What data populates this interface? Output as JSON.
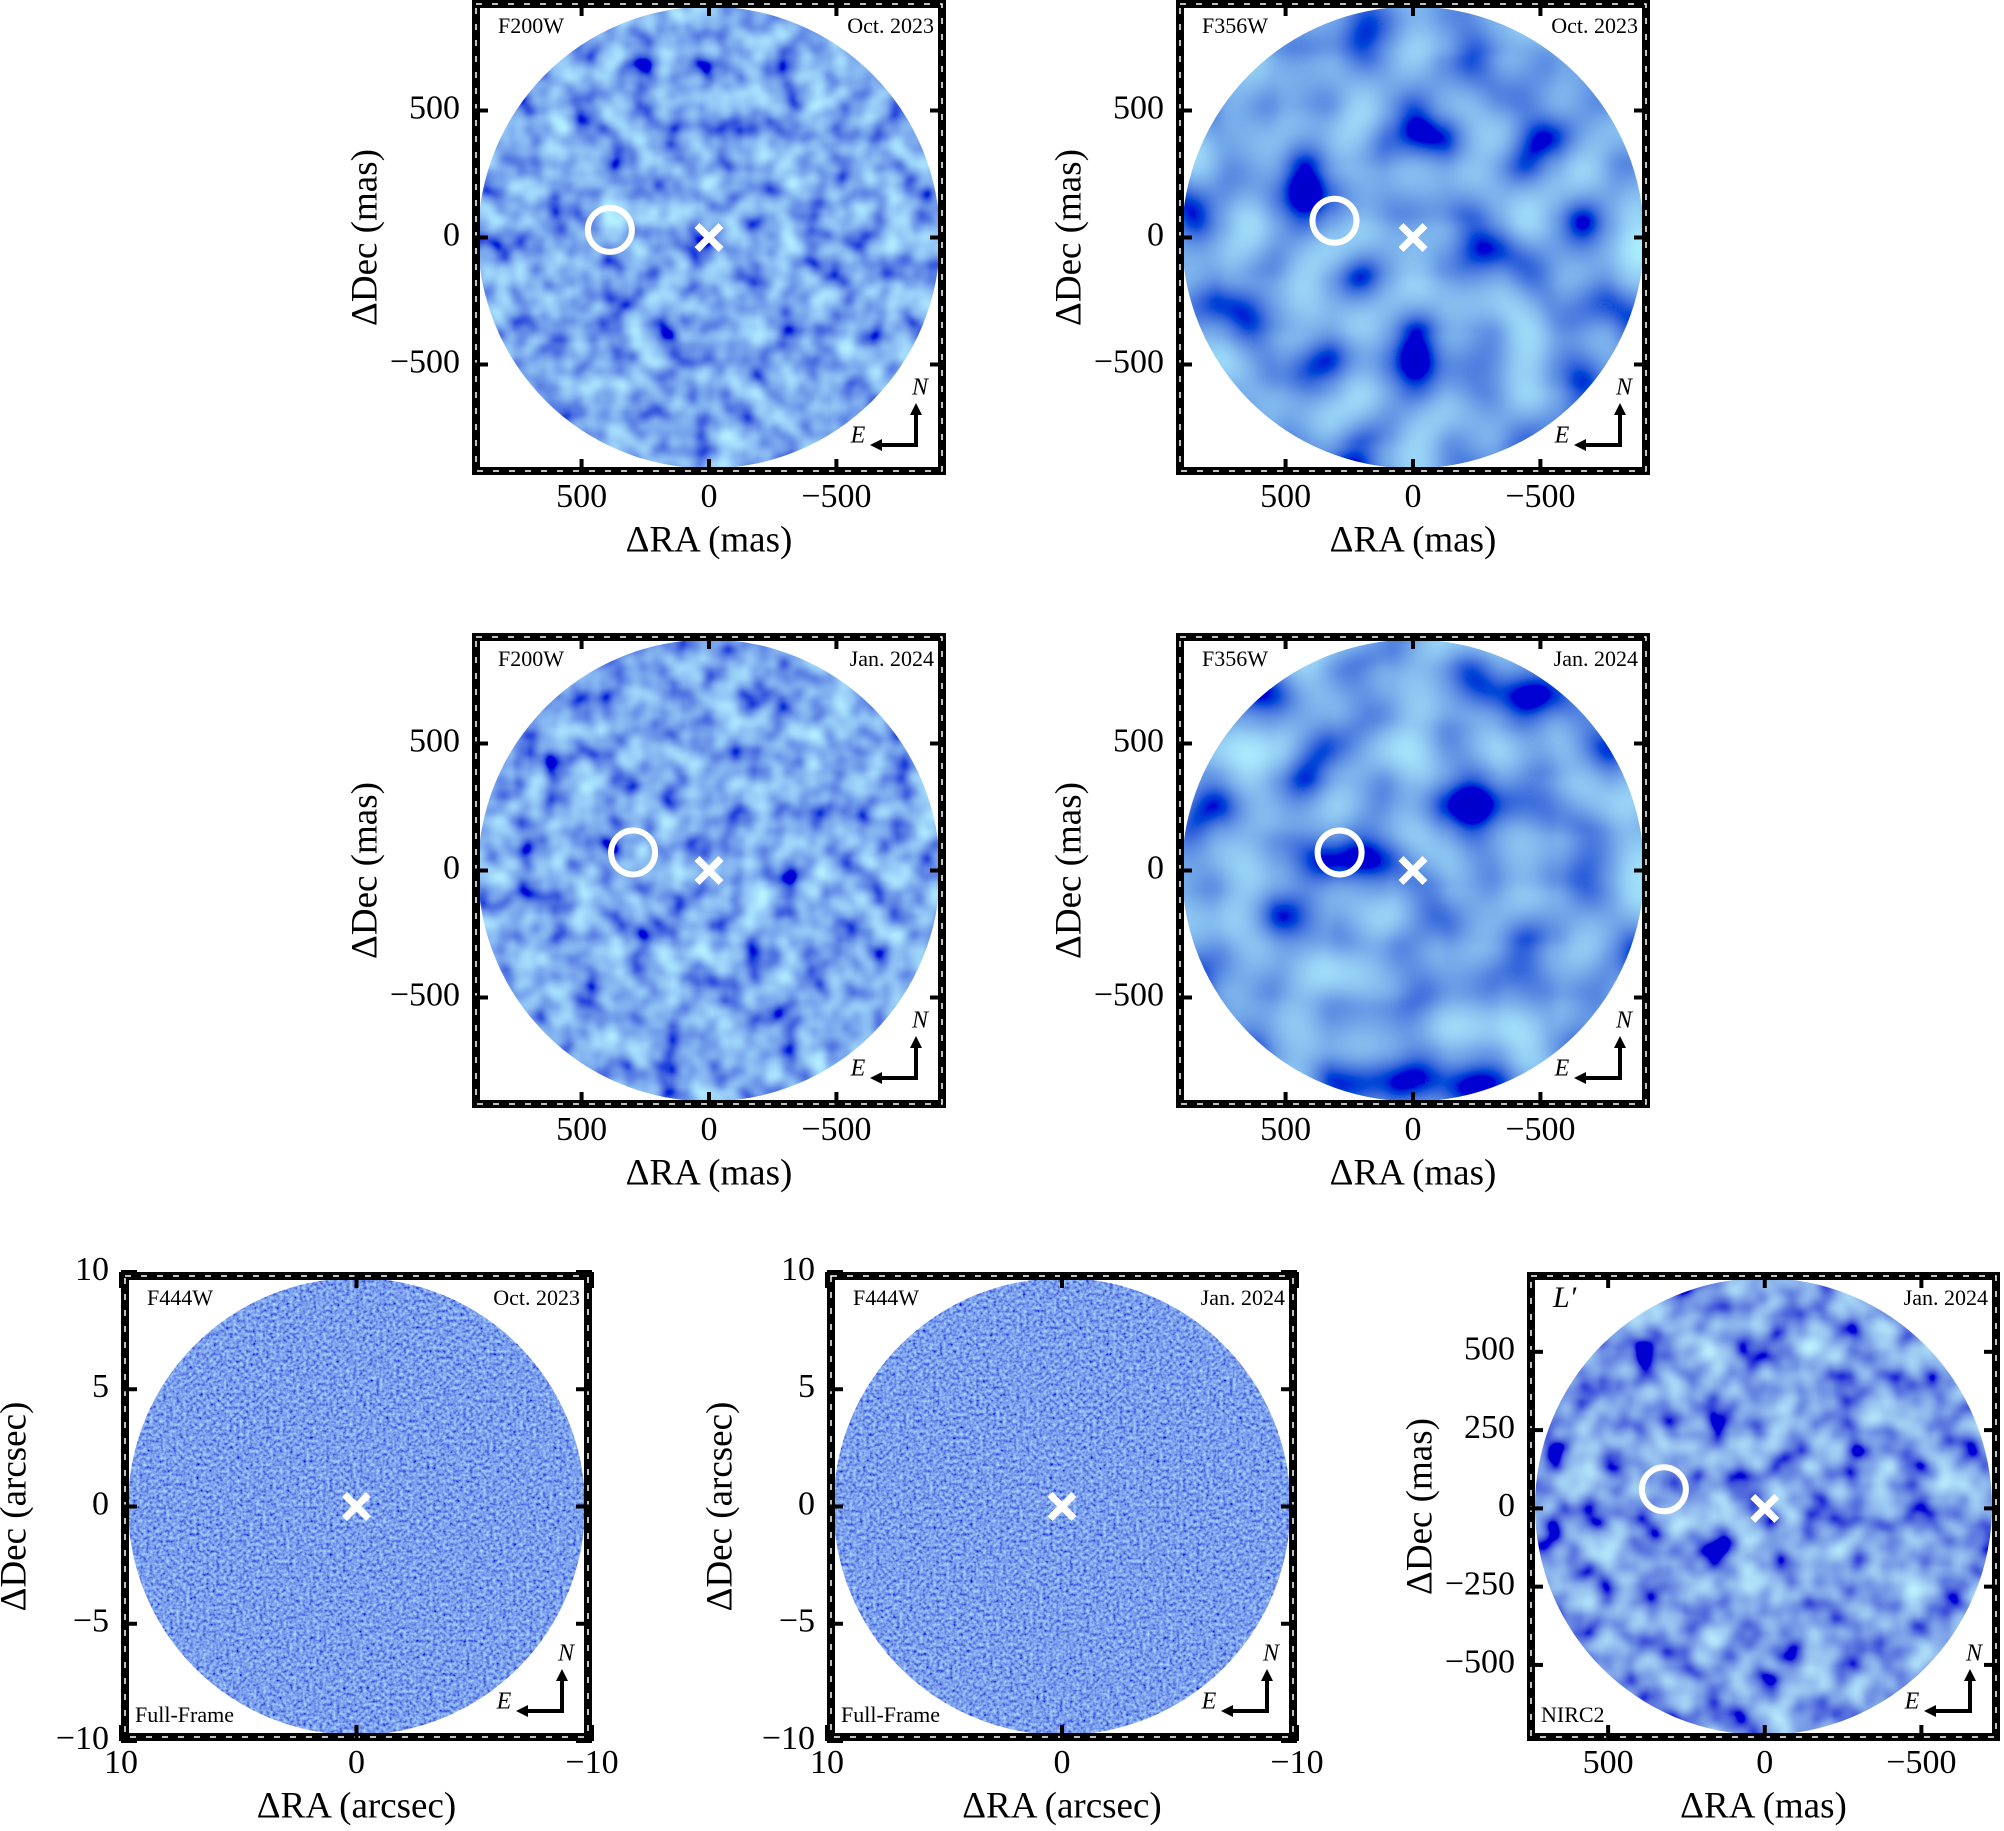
{
  "chart_data": [
    {
      "type": "image",
      "filter": "F200W",
      "date": "Oct. 2023",
      "xlabel": "ΔRA (mas)",
      "ylabel": "ΔDec (mas)",
      "compass": [
        "N",
        "E"
      ],
      "xlim": [
        930,
        -930
      ],
      "ylim": [
        -935,
        935
      ],
      "xticks": [
        500,
        0,
        {
          "value": -500,
          "label": "−500"
        }
      ],
      "yticks": [
        500,
        0,
        {
          "value": -500,
          "label": "−500"
        }
      ],
      "points": [
        {
          "x": 0,
          "y": 0,
          "marker": "x"
        },
        {
          "x": 389,
          "y": 30,
          "marker": "o"
        }
      ]
    },
    {
      "type": "image",
      "filter": "F356W",
      "date": "Oct. 2023",
      "xlabel": "ΔRA (mas)",
      "ylabel": "ΔDec (mas)",
      "compass": [
        "N",
        "E"
      ],
      "xlim": [
        930,
        -930
      ],
      "ylim": [
        -935,
        935
      ],
      "xticks": [
        500,
        0,
        {
          "value": -500,
          "label": "−500"
        }
      ],
      "yticks": [
        500,
        0,
        {
          "value": -500,
          "label": "−500"
        }
      ],
      "points": [
        {
          "x": 0,
          "y": 0,
          "marker": "x"
        },
        {
          "x": 308,
          "y": 66,
          "marker": "o"
        }
      ]
    },
    {
      "type": "image",
      "filter": "F200W",
      "date": "Jan. 2024",
      "xlabel": "ΔRA (mas)",
      "ylabel": "ΔDec (mas)",
      "compass": [
        "N",
        "E"
      ],
      "xlim": [
        930,
        -930
      ],
      "ylim": [
        -935,
        935
      ],
      "xticks": [
        500,
        0,
        {
          "value": -500,
          "label": "−500"
        }
      ],
      "yticks": [
        500,
        0,
        {
          "value": -500,
          "label": "−500"
        }
      ],
      "points": [
        {
          "x": 0,
          "y": 0,
          "marker": "x"
        },
        {
          "x": 298,
          "y": 71,
          "marker": "o"
        }
      ]
    },
    {
      "type": "image",
      "filter": "F356W",
      "date": "Jan. 2024",
      "xlabel": "ΔRA (mas)",
      "ylabel": "ΔDec (mas)",
      "compass": [
        "N",
        "E"
      ],
      "xlim": [
        930,
        -930
      ],
      "ylim": [
        -935,
        935
      ],
      "xticks": [
        500,
        0,
        {
          "value": -500,
          "label": "−500"
        }
      ],
      "yticks": [
        500,
        0,
        {
          "value": -500,
          "label": "−500"
        }
      ],
      "points": [
        {
          "x": 0,
          "y": 0,
          "marker": "x"
        },
        {
          "x": 288,
          "y": 71,
          "marker": "o"
        }
      ]
    },
    {
      "type": "image",
      "filter": "F444W",
      "date": "Oct. 2023",
      "note": "Full-Frame",
      "xlabel": "ΔRA (arcsec)",
      "ylabel": "ΔDec (arcsec)",
      "compass": [
        "N",
        "E"
      ],
      "xlim": [
        10,
        -10
      ],
      "ylim": [
        -10,
        10
      ],
      "xticks": [
        10,
        0,
        {
          "value": -10,
          "label": "−10"
        }
      ],
      "yticks": [
        10,
        5,
        0,
        {
          "value": -5,
          "label": "−5"
        },
        {
          "value": -10,
          "label": "−10"
        }
      ],
      "points": [
        {
          "x": 0,
          "y": 0,
          "marker": "x"
        }
      ]
    },
    {
      "type": "image",
      "filter": "F444W",
      "date": "Jan. 2024",
      "note": "Full-Frame",
      "xlabel": "ΔRA (arcsec)",
      "ylabel": "ΔDec (arcsec)",
      "compass": [
        "N",
        "E"
      ],
      "xlim": [
        10,
        -10
      ],
      "ylim": [
        -10,
        10
      ],
      "xticks": [
        10,
        0,
        {
          "value": -10,
          "label": "−10"
        }
      ],
      "yticks": [
        10,
        5,
        0,
        {
          "value": -5,
          "label": "−5"
        },
        {
          "value": -10,
          "label": "−10"
        }
      ],
      "points": [
        {
          "x": 0,
          "y": 0,
          "marker": "x"
        }
      ]
    },
    {
      "type": "image",
      "filter": "L′",
      "date": "Jan. 2024",
      "note": "NIRC2",
      "xlabel": "ΔRA (mas)",
      "ylabel": "ΔDec (mas)",
      "compass": [
        "N",
        "E"
      ],
      "xlim": [
        759,
        -751
      ],
      "ylim": [
        -743,
        755
      ],
      "xticks": [
        500,
        0,
        {
          "value": -500,
          "label": "−500"
        }
      ],
      "yticks": [
        500,
        250,
        0,
        {
          "value": -250,
          "label": "−250"
        },
        {
          "value": -500,
          "label": "−500"
        }
      ],
      "points": [
        {
          "x": 0,
          "y": 0,
          "marker": "x"
        },
        {
          "x": 322,
          "y": 61,
          "marker": "o"
        }
      ]
    }
  ]
}
